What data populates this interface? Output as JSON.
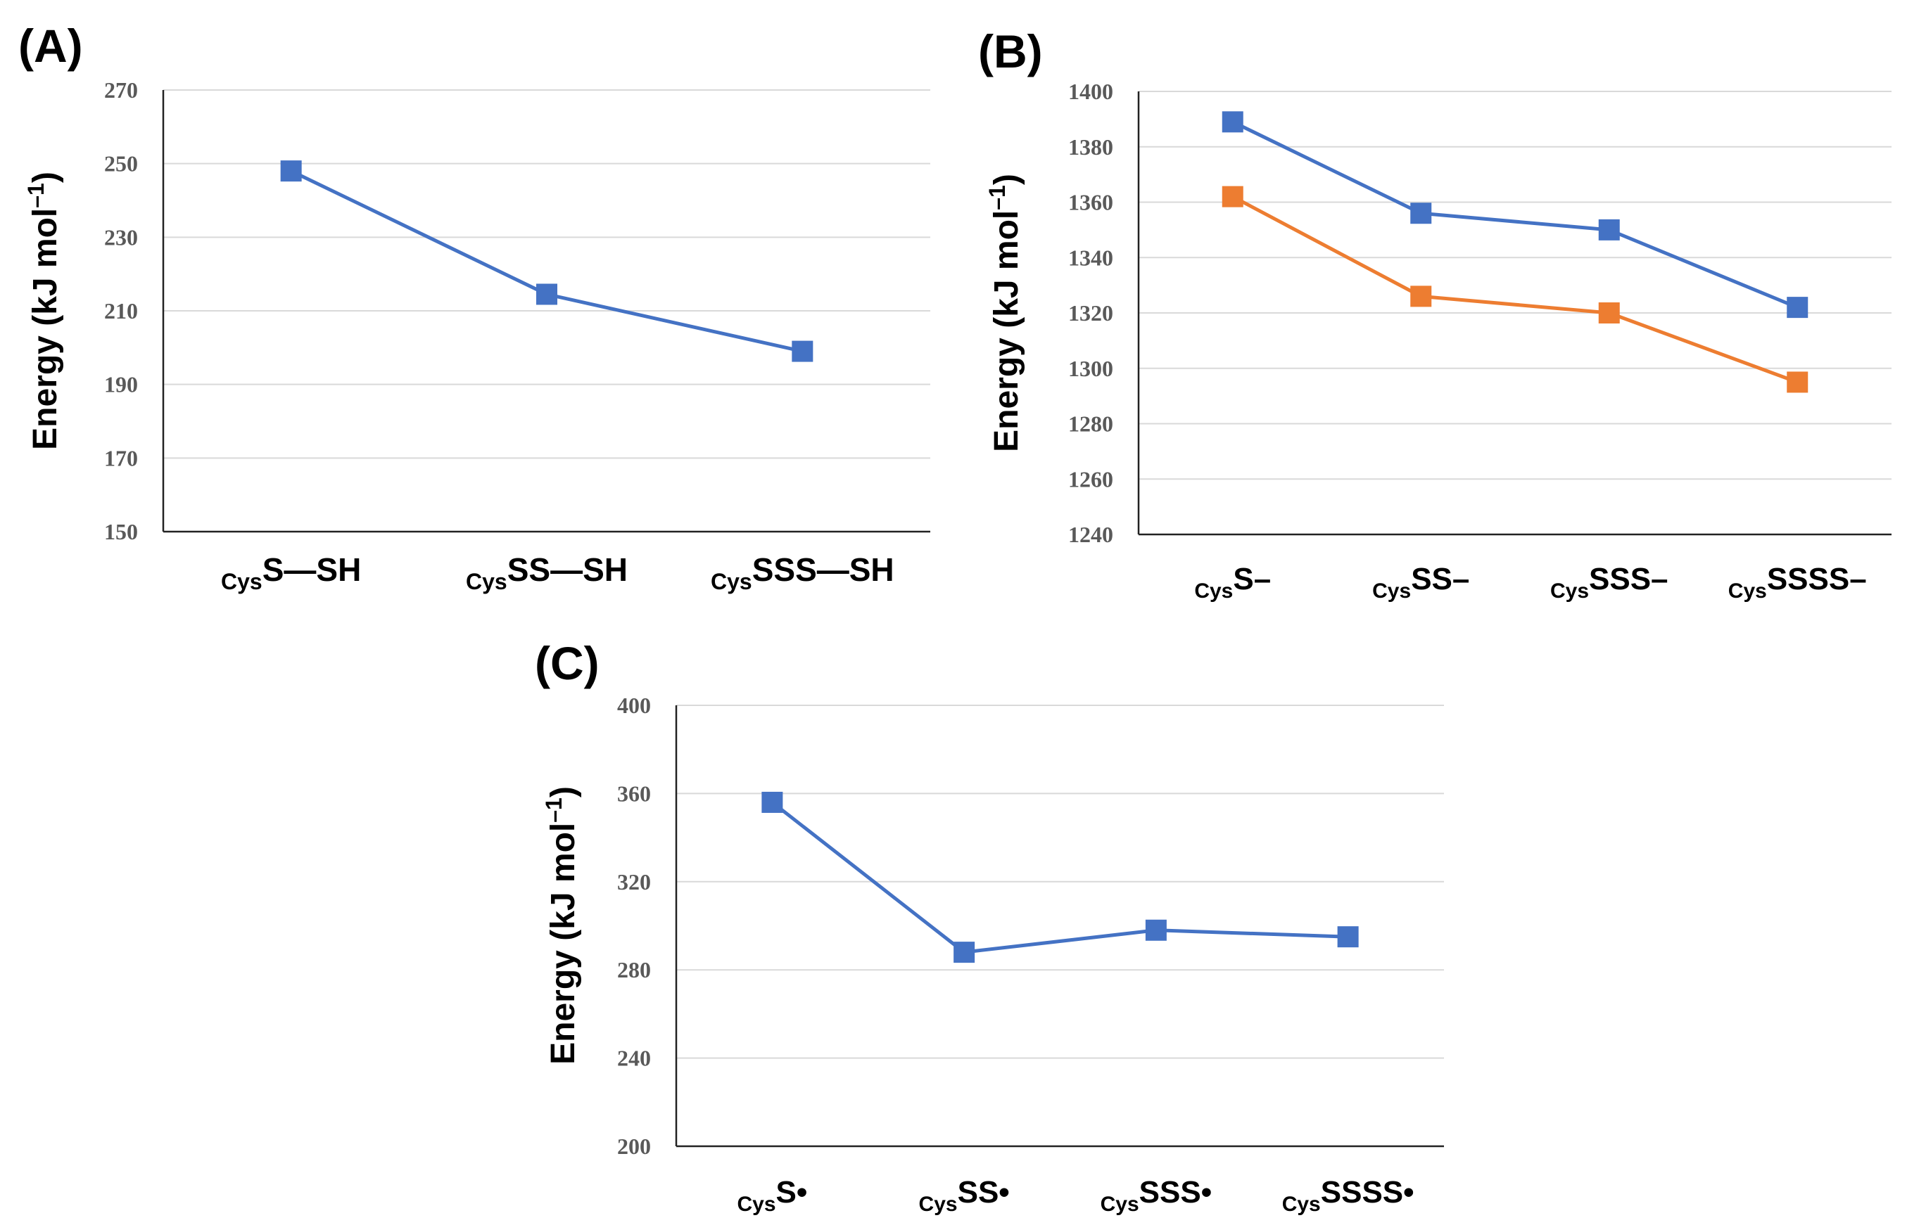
{
  "chart_data": [
    {
      "type": "line",
      "panel": "(A)",
      "ylabel": "Energy (kJ mol–1)",
      "ylim": [
        150,
        270
      ],
      "yticks": [
        150,
        170,
        190,
        210,
        230,
        250,
        270
      ],
      "categories": [
        {
          "sub": "Cys",
          "main": "S—SH"
        },
        {
          "sub": "Cys",
          "main": "SS—SH"
        },
        {
          "sub": "Cys",
          "main": "SSS—SH"
        }
      ],
      "series": [
        {
          "name": "series-1",
          "color": "#4472c4",
          "values": [
            248,
            214.5,
            199
          ]
        }
      ]
    },
    {
      "type": "line",
      "panel": "(B)",
      "ylabel": "Energy (kJ mol–1)",
      "ylim": [
        1240,
        1400
      ],
      "yticks": [
        1240,
        1260,
        1280,
        1300,
        1320,
        1340,
        1360,
        1380,
        1400
      ],
      "categories": [
        {
          "sub": "Cys",
          "main": "S–"
        },
        {
          "sub": "Cys",
          "main": "SS–"
        },
        {
          "sub": "Cys",
          "main": "SSS–"
        },
        {
          "sub": "Cys",
          "main": "SSSS–"
        }
      ],
      "series": [
        {
          "name": "series-1",
          "color": "#4472c4",
          "values": [
            1389,
            1356,
            1350,
            1322
          ]
        },
        {
          "name": "series-2",
          "color": "#ed7d31",
          "values": [
            1362,
            1326,
            1320,
            1295
          ]
        }
      ]
    },
    {
      "type": "line",
      "panel": "(C)",
      "ylabel": "Energy (kJ mol–1)",
      "ylim": [
        200,
        400
      ],
      "yticks": [
        200,
        240,
        280,
        320,
        360,
        400
      ],
      "categories": [
        {
          "sub": "Cys",
          "main": "S•"
        },
        {
          "sub": "Cys",
          "main": "SS•"
        },
        {
          "sub": "Cys",
          "main": "SSS•"
        },
        {
          "sub": "Cys",
          "main": "SSSS•"
        }
      ],
      "series": [
        {
          "name": "series-1",
          "color": "#4472c4",
          "values": [
            356,
            288,
            298,
            295
          ]
        }
      ]
    }
  ]
}
